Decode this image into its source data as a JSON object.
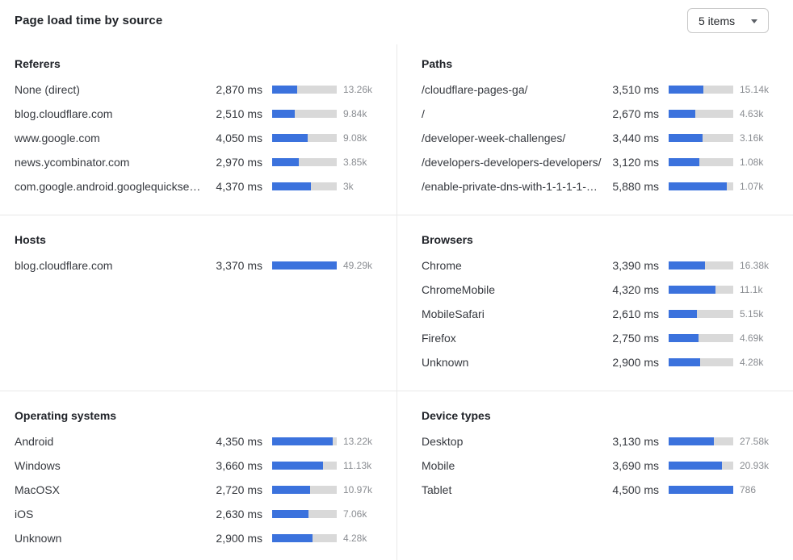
{
  "header": {
    "title": "Page load time by source",
    "items_selector": {
      "label": "5 items",
      "icon": "chevron-down-icon"
    }
  },
  "colors": {
    "bar_fill": "#3b72dd",
    "bar_track": "#d9d9d9",
    "divider": "#e8e8e8"
  },
  "chart_data": {
    "type": "bar",
    "orientation": "horizontal",
    "unit": "ms",
    "title": "Page load time by source",
    "legend": "none",
    "panels": [
      {
        "title": "Referers",
        "bar_scale_ms": 7300,
        "rows": [
          {
            "label": "None (direct)",
            "value_ms": 2870,
            "value_display": "2,870 ms",
            "count": "13.26k"
          },
          {
            "label": "blog.cloudflare.com",
            "value_ms": 2510,
            "value_display": "2,510 ms",
            "count": "9.84k"
          },
          {
            "label": "www.google.com",
            "value_ms": 4050,
            "value_display": "4,050 ms",
            "count": "9.08k"
          },
          {
            "label": "news.ycombinator.com",
            "value_ms": 2970,
            "value_display": "2,970 ms",
            "count": "3.85k"
          },
          {
            "label": "com.google.android.googlequicksearc...",
            "value_ms": 4370,
            "value_display": "4,370 ms",
            "count": "3k"
          }
        ]
      },
      {
        "title": "Paths",
        "bar_scale_ms": 6500,
        "rows": [
          {
            "label": "/cloudflare-pages-ga/",
            "value_ms": 3510,
            "value_display": "3,510 ms",
            "count": "15.14k"
          },
          {
            "label": "/",
            "value_ms": 2670,
            "value_display": "2,670 ms",
            "count": "4.63k"
          },
          {
            "label": "/developer-week-challenges/",
            "value_ms": 3440,
            "value_display": "3,440 ms",
            "count": "3.16k"
          },
          {
            "label": "/developers-developers-developers/",
            "value_ms": 3120,
            "value_display": "3,120 ms",
            "count": "1.08k"
          },
          {
            "label": "/enable-private-dns-with-1-1-1-1-on-...",
            "value_ms": 5880,
            "value_display": "5,880 ms",
            "count": "1.07k"
          }
        ]
      },
      {
        "title": "Hosts",
        "bar_scale_ms": 3370,
        "rows": [
          {
            "label": "blog.cloudflare.com",
            "value_ms": 3370,
            "value_display": "3,370 ms",
            "count": "49.29k"
          }
        ]
      },
      {
        "title": "Browsers",
        "bar_scale_ms": 6000,
        "rows": [
          {
            "label": "Chrome",
            "value_ms": 3390,
            "value_display": "3,390 ms",
            "count": "16.38k"
          },
          {
            "label": "ChromeMobile",
            "value_ms": 4320,
            "value_display": "4,320 ms",
            "count": "11.1k"
          },
          {
            "label": "MobileSafari",
            "value_ms": 2610,
            "value_display": "2,610 ms",
            "count": "5.15k"
          },
          {
            "label": "Firefox",
            "value_ms": 2750,
            "value_display": "2,750 ms",
            "count": "4.69k"
          },
          {
            "label": "Unknown",
            "value_ms": 2900,
            "value_display": "2,900 ms",
            "count": "4.28k"
          }
        ]
      },
      {
        "title": "Operating systems",
        "bar_scale_ms": 4650,
        "rows": [
          {
            "label": "Android",
            "value_ms": 4350,
            "value_display": "4,350 ms",
            "count": "13.22k"
          },
          {
            "label": "Windows",
            "value_ms": 3660,
            "value_display": "3,660 ms",
            "count": "11.13k"
          },
          {
            "label": "MacOSX",
            "value_ms": 2720,
            "value_display": "2,720 ms",
            "count": "10.97k"
          },
          {
            "label": "iOS",
            "value_ms": 2630,
            "value_display": "2,630 ms",
            "count": "7.06k"
          },
          {
            "label": "Unknown",
            "value_ms": 2900,
            "value_display": "2,900 ms",
            "count": "4.28k"
          }
        ]
      },
      {
        "title": "Device types",
        "bar_scale_ms": 4500,
        "rows": [
          {
            "label": "Desktop",
            "value_ms": 3130,
            "value_display": "3,130 ms",
            "count": "27.58k"
          },
          {
            "label": "Mobile",
            "value_ms": 3690,
            "value_display": "3,690 ms",
            "count": "20.93k"
          },
          {
            "label": "Tablet",
            "value_ms": 4500,
            "value_display": "4,500 ms",
            "count": "786"
          }
        ]
      }
    ]
  }
}
